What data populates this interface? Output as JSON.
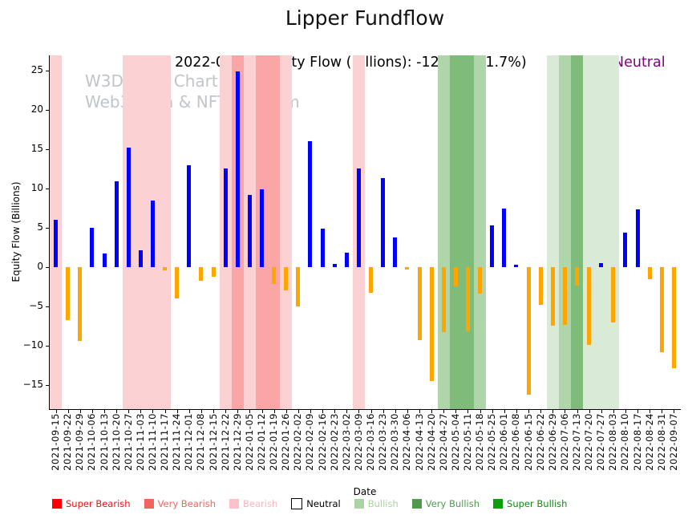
{
  "header": {
    "title": "Lipper Fundflow",
    "subtitle": "2022-09-07 Equity Flow (Billions): -12.90 (-21.7%)",
    "status": "Neutral",
    "status_color": "#800080"
  },
  "watermark": {
    "line1": "W3Data.io Chart",
    "line2": "Web3 Data & NFT Platform"
  },
  "chart_data": {
    "type": "bar",
    "title": "Lipper Fundflow",
    "xlabel": "Date",
    "ylabel": "Equity Flow (Billions)",
    "ylim": [
      -18,
      27
    ],
    "yticks": [
      25,
      20,
      15,
      10,
      5,
      0,
      -5,
      -10,
      -15
    ],
    "grid": false,
    "legend_position": "bottom",
    "positive_color": "#0000ff",
    "negative_color": "#ffa500",
    "categories": [
      "2021-09-15",
      "2021-09-22",
      "2021-09-29",
      "2021-10-06",
      "2021-10-13",
      "2021-10-20",
      "2021-10-27",
      "2021-11-03",
      "2021-11-10",
      "2021-11-17",
      "2021-11-24",
      "2021-12-01",
      "2021-12-08",
      "2021-12-15",
      "2021-12-22",
      "2021-12-29",
      "2022-01-05",
      "2022-01-12",
      "2022-01-19",
      "2022-01-26",
      "2022-02-02",
      "2022-02-09",
      "2022-02-16",
      "2022-02-23",
      "2022-03-02",
      "2022-03-09",
      "2022-03-16",
      "2022-03-23",
      "2022-03-30",
      "2022-04-06",
      "2022-04-13",
      "2022-04-20",
      "2022-04-27",
      "2022-05-04",
      "2022-05-11",
      "2022-05-18",
      "2022-05-25",
      "2022-06-01",
      "2022-06-08",
      "2022-06-15",
      "2022-06-22",
      "2022-06-29",
      "2022-07-06",
      "2022-07-13",
      "2022-07-20",
      "2022-07-27",
      "2022-08-03",
      "2022-08-10",
      "2022-08-17",
      "2022-08-24",
      "2022-08-31",
      "2022-09-07"
    ],
    "values": [
      6.0,
      -6.7,
      -9.4,
      5.0,
      1.7,
      10.9,
      15.2,
      2.1,
      8.5,
      -0.4,
      -4.0,
      13.0,
      -1.7,
      -1.2,
      12.6,
      24.9,
      9.2,
      9.9,
      -2.1,
      -3.0,
      -5.0,
      16.0,
      4.9,
      0.4,
      1.8,
      12.6,
      -3.3,
      11.3,
      3.8,
      -0.3,
      -9.3,
      -14.5,
      -8.3,
      -2.4,
      -8.2,
      -3.4,
      5.3,
      7.4,
      0.3,
      -16.2,
      -4.8,
      -7.4,
      -7.3,
      -2.3,
      -9.9,
      0.5,
      -7.0,
      4.4,
      7.3,
      -1.5,
      -10.8,
      -12.9
    ],
    "bands": [
      {
        "from_index": 0,
        "to_index": 0,
        "label": "Bearish",
        "color": "#fbd1d4"
      },
      {
        "from_index": 6,
        "to_index": 9,
        "label": "Bearish",
        "color": "#fbd1d4"
      },
      {
        "from_index": 14,
        "to_index": 14,
        "label": "Bearish",
        "color": "#fbd1d4"
      },
      {
        "from_index": 15,
        "to_index": 15,
        "label": "Very Bearish",
        "color": "#fba6a6"
      },
      {
        "from_index": 16,
        "to_index": 16,
        "label": "Bearish",
        "color": "#fbd1d4"
      },
      {
        "from_index": 17,
        "to_index": 18,
        "label": "Very Bearish",
        "color": "#fba6a6"
      },
      {
        "from_index": 19,
        "to_index": 19,
        "label": "Bearish",
        "color": "#fbd1d4"
      },
      {
        "from_index": 25,
        "to_index": 25,
        "label": "Bearish",
        "color": "#fbd1d4"
      },
      {
        "from_index": 32,
        "to_index": 32,
        "label": "Bullish",
        "color": "#b0d5aa"
      },
      {
        "from_index": 33,
        "to_index": 34,
        "label": "Very Bullish",
        "color": "#7fbc79"
      },
      {
        "from_index": 35,
        "to_index": 35,
        "label": "Bullish",
        "color": "#b0d5aa"
      },
      {
        "from_index": 41,
        "to_index": 41,
        "label": "Bullish",
        "color": "#d9ead6"
      },
      {
        "from_index": 42,
        "to_index": 42,
        "label": "Bullish",
        "color": "#b0d5aa"
      },
      {
        "from_index": 43,
        "to_index": 43,
        "label": "Very Bullish",
        "color": "#7fbc79"
      },
      {
        "from_index": 44,
        "to_index": 46,
        "label": "Bullish",
        "color": "#d9ead6"
      }
    ]
  },
  "legend": {
    "items": [
      {
        "label": "Super Bearish",
        "swatch": "#ff0000",
        "text_color": "#f20f0f"
      },
      {
        "label": "Very Bearish",
        "swatch": "#f0655d",
        "text_color": "#f0655d"
      },
      {
        "label": "Bearish",
        "swatch": "#ffc0cb",
        "text_color": "#ffb3c0"
      },
      {
        "label": "Neutral",
        "swatch": "#ffffff",
        "text_color": "#000000",
        "swatch_border": "#000000"
      },
      {
        "label": "Bullish",
        "swatch": "#abd3a3",
        "text_color": "#abd3a3"
      },
      {
        "label": "Very Bullish",
        "swatch": "#4e9b4e",
        "text_color": "#4e9b4e"
      },
      {
        "label": "Super Bullish",
        "swatch": "#0aa00a",
        "text_color": "#0e8c0e"
      }
    ]
  }
}
